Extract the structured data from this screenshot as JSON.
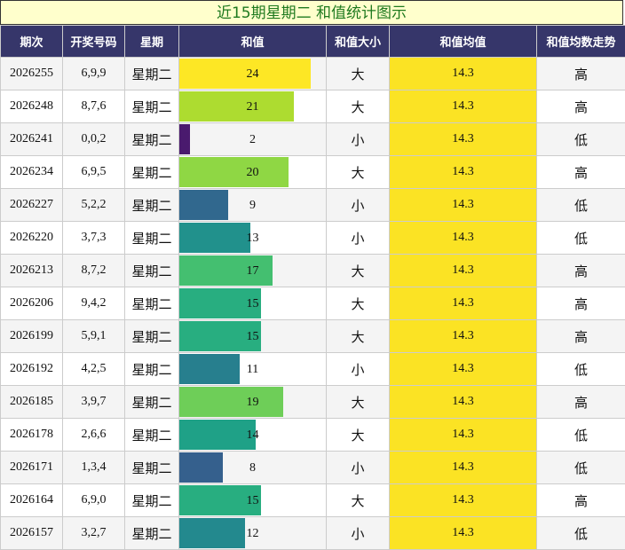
{
  "title": "近15期星期二 和值统计图示",
  "headers": [
    "期次",
    "开奖号码",
    "星期",
    "和值",
    "和值大小",
    "和值均值",
    "和值均数走势"
  ],
  "colors": {
    "header_bg": "#36366a",
    "title_bg": "#ffffcc",
    "title_text": "#1f7a1f",
    "avg_bg": "#fbe324"
  },
  "chart_data": {
    "type": "table",
    "title": "近15期星期二 和值统计图示",
    "columns": [
      "期次",
      "开奖号码",
      "星期",
      "和值",
      "和值大小",
      "和值均值",
      "和值均数走势"
    ],
    "sum_max": 27,
    "rows": [
      {
        "issue": "2026255",
        "numbers": "6,9,9",
        "weekday": "星期二",
        "sum": "24",
        "size": "大",
        "avg": "14.3",
        "trend": "高",
        "bar_color": "#fde725"
      },
      {
        "issue": "2026248",
        "numbers": "8,7,6",
        "weekday": "星期二",
        "sum": "21",
        "size": "大",
        "avg": "14.3",
        "trend": "高",
        "bar_color": "#addc30"
      },
      {
        "issue": "2026241",
        "numbers": "0,0,2",
        "weekday": "星期二",
        "sum": "2",
        "size": "小",
        "avg": "14.3",
        "trend": "低",
        "bar_color": "#4a1a6e"
      },
      {
        "issue": "2026234",
        "numbers": "6,9,5",
        "weekday": "星期二",
        "sum": "20",
        "size": "大",
        "avg": "14.3",
        "trend": "高",
        "bar_color": "#8fd744"
      },
      {
        "issue": "2026227",
        "numbers": "5,2,2",
        "weekday": "星期二",
        "sum": "9",
        "size": "小",
        "avg": "14.3",
        "trend": "低",
        "bar_color": "#31688e"
      },
      {
        "issue": "2026220",
        "numbers": "3,7,3",
        "weekday": "星期二",
        "sum": "13",
        "size": "小",
        "avg": "14.3",
        "trend": "低",
        "bar_color": "#21918c"
      },
      {
        "issue": "2026213",
        "numbers": "8,7,2",
        "weekday": "星期二",
        "sum": "17",
        "size": "大",
        "avg": "14.3",
        "trend": "高",
        "bar_color": "#44bf70"
      },
      {
        "issue": "2026206",
        "numbers": "9,4,2",
        "weekday": "星期二",
        "sum": "15",
        "size": "大",
        "avg": "14.3",
        "trend": "高",
        "bar_color": "#28ae80"
      },
      {
        "issue": "2026199",
        "numbers": "5,9,1",
        "weekday": "星期二",
        "sum": "15",
        "size": "大",
        "avg": "14.3",
        "trend": "高",
        "bar_color": "#28ae80"
      },
      {
        "issue": "2026192",
        "numbers": "4,2,5",
        "weekday": "星期二",
        "sum": "11",
        "size": "小",
        "avg": "14.3",
        "trend": "低",
        "bar_color": "#277f8e"
      },
      {
        "issue": "2026185",
        "numbers": "3,9,7",
        "weekday": "星期二",
        "sum": "19",
        "size": "大",
        "avg": "14.3",
        "trend": "高",
        "bar_color": "#6ece58"
      },
      {
        "issue": "2026178",
        "numbers": "2,6,6",
        "weekday": "星期二",
        "sum": "14",
        "size": "大",
        "avg": "14.3",
        "trend": "低",
        "bar_color": "#1fa187"
      },
      {
        "issue": "2026171",
        "numbers": "1,3,4",
        "weekday": "星期二",
        "sum": "8",
        "size": "小",
        "avg": "14.3",
        "trend": "低",
        "bar_color": "#35608d"
      },
      {
        "issue": "2026164",
        "numbers": "6,9,0",
        "weekday": "星期二",
        "sum": "15",
        "size": "大",
        "avg": "14.3",
        "trend": "高",
        "bar_color": "#28ae80"
      },
      {
        "issue": "2026157",
        "numbers": "3,2,7",
        "weekday": "星期二",
        "sum": "12",
        "size": "小",
        "avg": "14.3",
        "trend": "低",
        "bar_color": "#23898e"
      }
    ]
  }
}
